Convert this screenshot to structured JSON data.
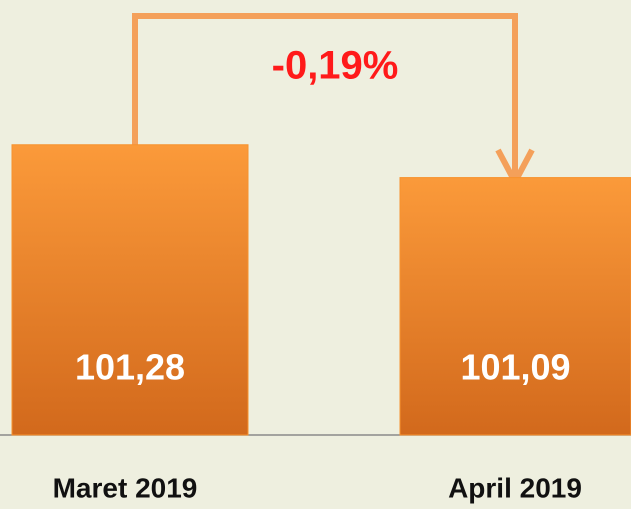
{
  "chart_data": {
    "type": "bar",
    "categories": [
      "Maret 2019",
      "April 2019"
    ],
    "values": [
      101.28,
      101.09
    ],
    "value_labels": [
      "101,28",
      "101,09"
    ],
    "annotation": "-0,19%",
    "color": "#f7922e",
    "ylim": [
      99.6,
      102.06
    ]
  }
}
